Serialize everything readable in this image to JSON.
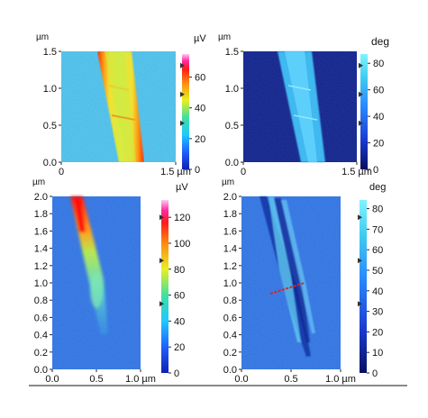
{
  "panels": [
    {
      "id": "top-left",
      "unit_y": "µm",
      "y_ticks": [
        "1.5",
        "1.0",
        "0.5",
        "0.0"
      ],
      "x_ticks": [
        "0",
        "1.5 µm"
      ],
      "colorbar_unit": "µV",
      "colorbar_ticks": [
        "60",
        "40",
        "20",
        "0"
      ],
      "colorbar_scheme": "rainbow",
      "image_style": "stripe-bright"
    },
    {
      "id": "top-right",
      "unit_y": "µm",
      "y_ticks": [
        "1.5",
        "1.0",
        "0.5",
        "0.0"
      ],
      "x_ticks": [
        "0",
        "1.5 µm"
      ],
      "colorbar_unit": "deg",
      "colorbar_ticks": [
        "80",
        "60",
        "40",
        "20",
        "0"
      ],
      "colorbar_scheme": "blue",
      "image_style": "stripe-phase"
    },
    {
      "id": "bottom-left",
      "unit_y": "µm",
      "y_ticks": [
        "2.0",
        "1.8",
        "1.6",
        "1.4",
        "1.2",
        "1.0",
        "0.8",
        "0.6",
        "0.4",
        "0.2",
        "0.0"
      ],
      "x_ticks": [
        "0.0",
        "0.5",
        "1.0 µm"
      ],
      "colorbar_unit": "µV",
      "colorbar_ticks": [
        "120",
        "100",
        "80",
        "60",
        "40",
        "20",
        "0"
      ],
      "colorbar_scheme": "rainbow",
      "image_style": "wedge-bright"
    },
    {
      "id": "bottom-right",
      "unit_y": "µm",
      "y_ticks": [
        "2.0",
        "1.8",
        "1.6",
        "1.4",
        "1.2",
        "1.0",
        "0.8",
        "0.6",
        "0.4",
        "0.2",
        "0.0"
      ],
      "x_ticks": [
        "0.0",
        "0.5",
        "1.0 µm"
      ],
      "colorbar_unit": "deg",
      "colorbar_ticks": [
        "80",
        "70",
        "60",
        "50",
        "40",
        "30",
        "20",
        "10",
        "0"
      ],
      "colorbar_scheme": "blue",
      "image_style": "wedge-phase"
    }
  ],
  "colors": {
    "background_cyan": "#3cb8e6",
    "background_navy": "#0c1f8a",
    "background_blue": "#2a6fe0",
    "marker_red": "#e02020"
  }
}
